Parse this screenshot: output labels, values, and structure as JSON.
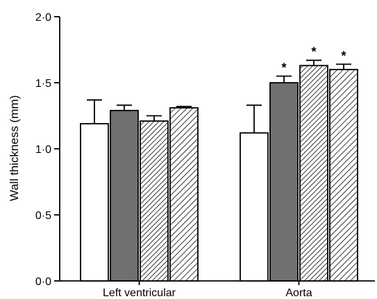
{
  "chart_data": {
    "type": "bar",
    "title": "",
    "xlabel": "",
    "ylabel": "Wall thickness (mm)",
    "ylim": [
      0,
      2.0
    ],
    "yticks": [
      {
        "value": 0.0,
        "label": "0·0"
      },
      {
        "value": 0.5,
        "label": "0·5"
      },
      {
        "value": 1.0,
        "label": "1·0"
      },
      {
        "value": 1.5,
        "label": "1·5"
      },
      {
        "value": 2.0,
        "label": "2·0"
      }
    ],
    "categories": [
      "Left ventricular",
      "Aorta"
    ],
    "grid": false,
    "legend": "none",
    "series": [
      {
        "fill": "white",
        "values": [
          1.19,
          1.12
        ],
        "errors": [
          0.18,
          0.21
        ],
        "significant": [
          false,
          false
        ]
      },
      {
        "fill": "dark-grey",
        "values": [
          1.29,
          1.5
        ],
        "errors": [
          0.04,
          0.05
        ],
        "significant": [
          false,
          true
        ]
      },
      {
        "fill": "hatch-dense",
        "values": [
          1.21,
          1.63
        ],
        "errors": [
          0.04,
          0.04
        ],
        "significant": [
          false,
          true
        ]
      },
      {
        "fill": "hatch-sparse",
        "values": [
          1.31,
          1.6
        ],
        "errors": [
          0.01,
          0.04
        ],
        "significant": [
          false,
          true
        ]
      }
    ],
    "significance_marker": "*",
    "colors": {
      "dark_grey": "#707070",
      "stroke": "#000000"
    }
  }
}
